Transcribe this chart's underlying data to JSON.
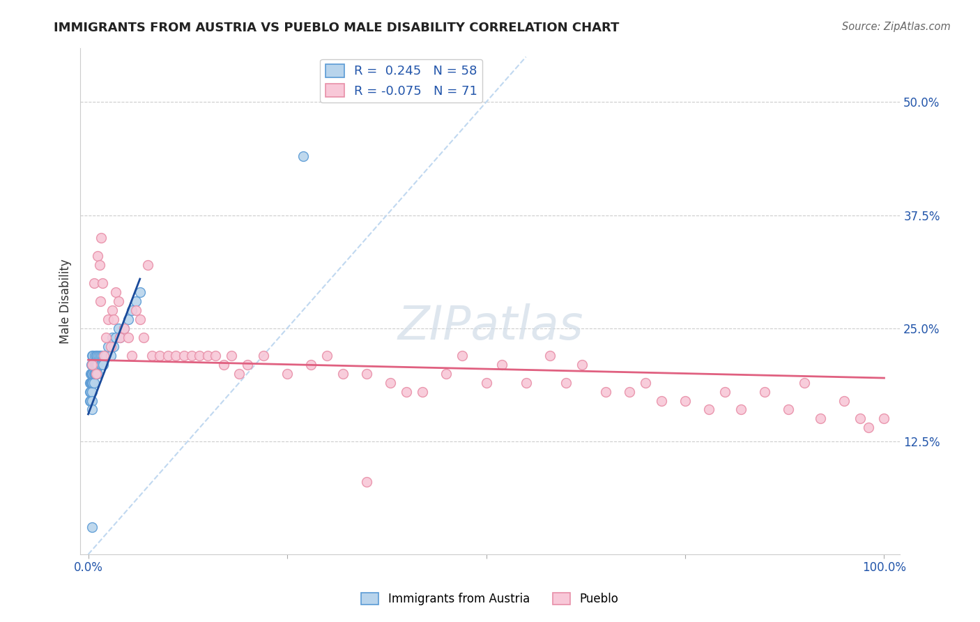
{
  "title": "IMMIGRANTS FROM AUSTRIA VS PUEBLO MALE DISABILITY CORRELATION CHART",
  "source": "Source: ZipAtlas.com",
  "ylabel": "Male Disability",
  "ytick_labels": [
    "12.5%",
    "25.0%",
    "37.5%",
    "50.0%"
  ],
  "ytick_values": [
    0.125,
    0.25,
    0.375,
    0.5
  ],
  "ylim": [
    0.0,
    0.56
  ],
  "xlim": [
    -0.01,
    1.02
  ],
  "blue_R": 0.245,
  "blue_N": 58,
  "pink_R": -0.075,
  "pink_N": 71,
  "blue_color": "#b8d4ec",
  "blue_edge_color": "#5b9bd5",
  "pink_color": "#f8c8d8",
  "pink_edge_color": "#e88fa8",
  "blue_trend_color": "#1a4a9a",
  "pink_trend_color": "#e06080",
  "diagonal_color": "#c0d8f0",
  "watermark_color": "#d0dce8",
  "grid_color": "#cccccc",
  "title_color": "#222222",
  "axis_label_color": "#2255aa",
  "blue_x": [
    0.002,
    0.002,
    0.002,
    0.003,
    0.003,
    0.003,
    0.003,
    0.004,
    0.004,
    0.004,
    0.005,
    0.005,
    0.005,
    0.005,
    0.005,
    0.005,
    0.005,
    0.006,
    0.006,
    0.006,
    0.007,
    0.007,
    0.007,
    0.008,
    0.008,
    0.008,
    0.009,
    0.009,
    0.01,
    0.01,
    0.011,
    0.011,
    0.012,
    0.012,
    0.013,
    0.014,
    0.015,
    0.016,
    0.017,
    0.018,
    0.019,
    0.02,
    0.021,
    0.022,
    0.025,
    0.028,
    0.03,
    0.032,
    0.035,
    0.038,
    0.04,
    0.045,
    0.05,
    0.055,
    0.06,
    0.065,
    0.27,
    0.005
  ],
  "blue_y": [
    0.19,
    0.18,
    0.17,
    0.2,
    0.19,
    0.18,
    0.17,
    0.21,
    0.2,
    0.19,
    0.22,
    0.21,
    0.2,
    0.19,
    0.18,
    0.17,
    0.16,
    0.22,
    0.2,
    0.19,
    0.21,
    0.2,
    0.19,
    0.22,
    0.21,
    0.2,
    0.21,
    0.2,
    0.22,
    0.21,
    0.22,
    0.21,
    0.21,
    0.2,
    0.22,
    0.22,
    0.21,
    0.22,
    0.21,
    0.22,
    0.21,
    0.22,
    0.22,
    0.22,
    0.23,
    0.22,
    0.24,
    0.23,
    0.24,
    0.25,
    0.24,
    0.25,
    0.26,
    0.27,
    0.28,
    0.29,
    0.44,
    0.03
  ],
  "pink_x": [
    0.005,
    0.007,
    0.01,
    0.012,
    0.014,
    0.015,
    0.016,
    0.018,
    0.02,
    0.022,
    0.025,
    0.028,
    0.03,
    0.032,
    0.035,
    0.038,
    0.04,
    0.045,
    0.05,
    0.055,
    0.06,
    0.065,
    0.07,
    0.075,
    0.08,
    0.09,
    0.1,
    0.11,
    0.12,
    0.13,
    0.14,
    0.15,
    0.16,
    0.17,
    0.18,
    0.19,
    0.2,
    0.22,
    0.25,
    0.28,
    0.3,
    0.32,
    0.35,
    0.38,
    0.4,
    0.42,
    0.45,
    0.47,
    0.5,
    0.52,
    0.55,
    0.58,
    0.6,
    0.62,
    0.65,
    0.68,
    0.7,
    0.72,
    0.75,
    0.78,
    0.8,
    0.82,
    0.85,
    0.88,
    0.9,
    0.92,
    0.95,
    0.97,
    0.98,
    1.0,
    0.35
  ],
  "pink_y": [
    0.21,
    0.3,
    0.2,
    0.33,
    0.32,
    0.28,
    0.35,
    0.3,
    0.22,
    0.24,
    0.26,
    0.23,
    0.27,
    0.26,
    0.29,
    0.28,
    0.24,
    0.25,
    0.24,
    0.22,
    0.27,
    0.26,
    0.24,
    0.32,
    0.22,
    0.22,
    0.22,
    0.22,
    0.22,
    0.22,
    0.22,
    0.22,
    0.22,
    0.21,
    0.22,
    0.2,
    0.21,
    0.22,
    0.2,
    0.21,
    0.22,
    0.2,
    0.2,
    0.19,
    0.18,
    0.18,
    0.2,
    0.22,
    0.19,
    0.21,
    0.19,
    0.22,
    0.19,
    0.21,
    0.18,
    0.18,
    0.19,
    0.17,
    0.17,
    0.16,
    0.18,
    0.16,
    0.18,
    0.16,
    0.19,
    0.15,
    0.17,
    0.15,
    0.14,
    0.15,
    0.08
  ],
  "blue_trend_x": [
    0.002,
    0.065
  ],
  "blue_trend_y_intercept": 0.155,
  "blue_trend_slope": 2.3,
  "pink_trend_y_at_0": 0.215,
  "pink_trend_y_at_1": 0.195
}
